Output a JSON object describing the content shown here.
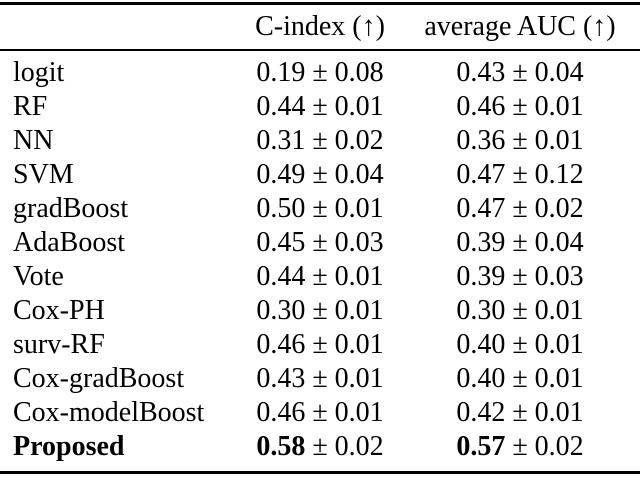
{
  "table": {
    "headers": {
      "model": "",
      "cindex": "C-index (↑)",
      "auc": "average AUC (↑)"
    },
    "rows": [
      {
        "model": "logit",
        "cindex": {
          "mean": "0.19",
          "pm": "± 0.08"
        },
        "auc": {
          "mean": "0.43",
          "pm": "± 0.04"
        },
        "bold": false
      },
      {
        "model": "RF",
        "cindex": {
          "mean": "0.44",
          "pm": "± 0.01"
        },
        "auc": {
          "mean": "0.46",
          "pm": "± 0.01"
        },
        "bold": false
      },
      {
        "model": "NN",
        "cindex": {
          "mean": "0.31",
          "pm": "± 0.02"
        },
        "auc": {
          "mean": "0.36",
          "pm": "± 0.01"
        },
        "bold": false
      },
      {
        "model": "SVM",
        "cindex": {
          "mean": "0.49",
          "pm": "± 0.04"
        },
        "auc": {
          "mean": "0.47",
          "pm": "± 0.12"
        },
        "bold": false
      },
      {
        "model": "gradBoost",
        "cindex": {
          "mean": "0.50",
          "pm": "± 0.01"
        },
        "auc": {
          "mean": "0.47",
          "pm": "± 0.02"
        },
        "bold": false
      },
      {
        "model": "AdaBoost",
        "cindex": {
          "mean": "0.45",
          "pm": "± 0.03"
        },
        "auc": {
          "mean": "0.39",
          "pm": "± 0.04"
        },
        "bold": false
      },
      {
        "model": "Vote",
        "cindex": {
          "mean": "0.44",
          "pm": "± 0.01"
        },
        "auc": {
          "mean": "0.39",
          "pm": "± 0.03"
        },
        "bold": false
      },
      {
        "model": "Cox-PH",
        "cindex": {
          "mean": "0.30",
          "pm": "± 0.01"
        },
        "auc": {
          "mean": "0.30",
          "pm": "± 0.01"
        },
        "bold": false
      },
      {
        "model": "surv-RF",
        "cindex": {
          "mean": "0.46",
          "pm": "± 0.01"
        },
        "auc": {
          "mean": "0.40",
          "pm": "± 0.01"
        },
        "bold": false
      },
      {
        "model": "Cox-gradBoost",
        "cindex": {
          "mean": "0.43",
          "pm": "± 0.01"
        },
        "auc": {
          "mean": "0.40",
          "pm": "± 0.01"
        },
        "bold": false
      },
      {
        "model": "Cox-modelBoost",
        "cindex": {
          "mean": "0.46",
          "pm": "± 0.01"
        },
        "auc": {
          "mean": "0.42",
          "pm": "± 0.01"
        },
        "bold": false
      },
      {
        "model": "Proposed",
        "cindex": {
          "mean": "0.58",
          "pm": "± 0.02"
        },
        "auc": {
          "mean": "0.57",
          "pm": "± 0.02"
        },
        "bold": true
      }
    ]
  }
}
